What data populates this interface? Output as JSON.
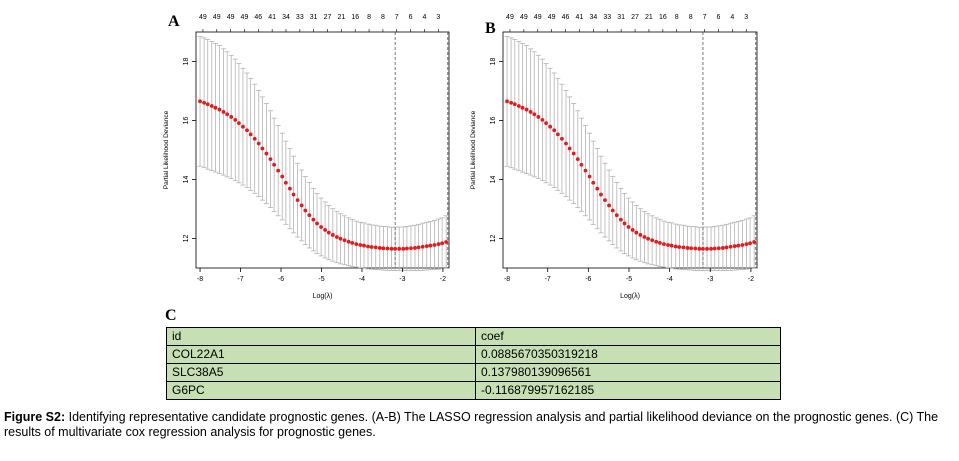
{
  "panels": {
    "A": "A",
    "B": "B",
    "C": "C"
  },
  "chart_data": [
    {
      "type": "scatter",
      "panel": "A",
      "title": "",
      "xlabel": "Log(λ)",
      "ylabel": "Partial Likelihood Deviance",
      "xlim": [
        -8.1,
        -1.85
      ],
      "ylim": [
        11.0,
        19.0
      ],
      "x_ticks": [
        "-8",
        "-7",
        "-6",
        "-5",
        "-4",
        "-3",
        "-2"
      ],
      "y_ticks": [
        "12",
        "14",
        "16",
        "18"
      ],
      "top_axis_labels": [
        "49",
        "49",
        "49",
        "49",
        "46",
        "41",
        "34",
        "33",
        "31",
        "27",
        "21",
        "16",
        "8",
        "8",
        "7",
        "6",
        "4",
        "3"
      ],
      "vlines": [
        -3.18,
        -1.88
      ],
      "point_color": "#e41a1c",
      "errorbar_color": "#b3b3b3",
      "points": [
        [
          -8.0,
          16.65
        ],
        [
          -7.9,
          16.6
        ],
        [
          -7.81,
          16.55
        ],
        [
          -7.71,
          16.49
        ],
        [
          -7.62,
          16.43
        ],
        [
          -7.52,
          16.37
        ],
        [
          -7.42,
          16.29
        ],
        [
          -7.33,
          16.21
        ],
        [
          -7.23,
          16.12
        ],
        [
          -7.13,
          16.02
        ],
        [
          -7.04,
          15.91
        ],
        [
          -6.94,
          15.79
        ],
        [
          -6.84,
          15.67
        ],
        [
          -6.75,
          15.53
        ],
        [
          -6.65,
          15.38
        ],
        [
          -6.55,
          15.22
        ],
        [
          -6.46,
          15.05
        ],
        [
          -6.36,
          14.88
        ],
        [
          -6.26,
          14.69
        ],
        [
          -6.17,
          14.5
        ],
        [
          -6.07,
          14.3
        ],
        [
          -5.97,
          14.1
        ],
        [
          -5.88,
          13.89
        ],
        [
          -5.78,
          13.69
        ],
        [
          -5.69,
          13.49
        ],
        [
          -5.59,
          13.3
        ],
        [
          -5.49,
          13.12
        ],
        [
          -5.4,
          12.95
        ],
        [
          -5.3,
          12.79
        ],
        [
          -5.2,
          12.64
        ],
        [
          -5.11,
          12.51
        ],
        [
          -5.01,
          12.39
        ],
        [
          -4.91,
          12.29
        ],
        [
          -4.82,
          12.2
        ],
        [
          -4.72,
          12.12
        ],
        [
          -4.62,
          12.05
        ],
        [
          -4.53,
          11.99
        ],
        [
          -4.43,
          11.94
        ],
        [
          -4.33,
          11.89
        ],
        [
          -4.24,
          11.85
        ],
        [
          -4.14,
          11.81
        ],
        [
          -4.04,
          11.78
        ],
        [
          -3.95,
          11.76
        ],
        [
          -3.85,
          11.73
        ],
        [
          -3.76,
          11.71
        ],
        [
          -3.66,
          11.7
        ],
        [
          -3.56,
          11.68
        ],
        [
          -3.47,
          11.67
        ],
        [
          -3.37,
          11.66
        ],
        [
          -3.27,
          11.65
        ],
        [
          -3.18,
          11.65
        ],
        [
          -3.08,
          11.65
        ],
        [
          -2.98,
          11.65
        ],
        [
          -2.89,
          11.66
        ],
        [
          -2.79,
          11.67
        ],
        [
          -2.69,
          11.68
        ],
        [
          -2.6,
          11.7
        ],
        [
          -2.5,
          11.72
        ],
        [
          -2.4,
          11.74
        ],
        [
          -2.31,
          11.76
        ],
        [
          -2.21,
          11.78
        ],
        [
          -2.11,
          11.81
        ],
        [
          -2.02,
          11.84
        ],
        [
          -1.92,
          11.88
        ]
      ],
      "lower": [
        14.45,
        14.4,
        14.35,
        14.3,
        14.25,
        14.2,
        14.15,
        14.09,
        14.03,
        13.96,
        13.89,
        13.81,
        13.73,
        13.63,
        13.53,
        13.42,
        13.3,
        13.18,
        13.05,
        12.92,
        12.77,
        12.63,
        12.48,
        12.33,
        12.19,
        12.05,
        11.92,
        11.8,
        11.68,
        11.58,
        11.49,
        11.41,
        11.34,
        11.28,
        11.23,
        11.18,
        11.14,
        11.11,
        11.08,
        11.05,
        11.03,
        11.01,
        10.99,
        10.97,
        10.96,
        10.95,
        10.94,
        10.93,
        10.92,
        10.92,
        10.91,
        10.91,
        10.91,
        10.91,
        10.91,
        10.91,
        10.92,
        10.92,
        10.93,
        10.94,
        10.95,
        10.96,
        10.98,
        10.99
      ],
      "upper": [
        18.85,
        18.8,
        18.75,
        18.68,
        18.61,
        18.54,
        18.43,
        18.33,
        18.21,
        18.08,
        17.93,
        17.77,
        17.61,
        17.43,
        17.23,
        17.02,
        16.8,
        16.58,
        16.33,
        16.08,
        15.83,
        15.57,
        15.3,
        15.05,
        14.79,
        14.55,
        14.32,
        14.1,
        13.9,
        13.7,
        13.53,
        13.37,
        13.24,
        13.12,
        13.01,
        12.92,
        12.84,
        12.77,
        12.7,
        12.65,
        12.59,
        12.55,
        12.53,
        12.49,
        12.46,
        12.45,
        12.42,
        12.41,
        12.4,
        12.38,
        12.39,
        12.39,
        12.39,
        12.41,
        12.43,
        12.45,
        12.48,
        12.52,
        12.55,
        12.58,
        12.61,
        12.66,
        12.7,
        12.77
      ]
    },
    {
      "type": "scatter",
      "panel": "B",
      "title": "",
      "xlabel": "Log(λ)",
      "ylabel": "Partial Likelihood Deviance",
      "xlim": [
        -8.1,
        -1.85
      ],
      "ylim": [
        11.0,
        19.0
      ],
      "x_ticks": [
        "-8",
        "-7",
        "-6",
        "-5",
        "-4",
        "-3",
        "-2"
      ],
      "y_ticks": [
        "12",
        "14",
        "16",
        "18"
      ],
      "top_axis_labels": [
        "49",
        "49",
        "49",
        "49",
        "46",
        "41",
        "34",
        "33",
        "31",
        "27",
        "21",
        "16",
        "8",
        "8",
        "7",
        "6",
        "4",
        "3"
      ],
      "vlines": [
        -3.18,
        -1.88
      ],
      "point_color": "#e41a1c",
      "errorbar_color": "#b3b3b3",
      "points": [
        [
          -8.0,
          16.65
        ],
        [
          -7.9,
          16.6
        ],
        [
          -7.81,
          16.55
        ],
        [
          -7.71,
          16.49
        ],
        [
          -7.62,
          16.43
        ],
        [
          -7.52,
          16.37
        ],
        [
          -7.42,
          16.29
        ],
        [
          -7.33,
          16.21
        ],
        [
          -7.23,
          16.12
        ],
        [
          -7.13,
          16.02
        ],
        [
          -7.04,
          15.91
        ],
        [
          -6.94,
          15.79
        ],
        [
          -6.84,
          15.67
        ],
        [
          -6.75,
          15.53
        ],
        [
          -6.65,
          15.38
        ],
        [
          -6.55,
          15.22
        ],
        [
          -6.46,
          15.05
        ],
        [
          -6.36,
          14.88
        ],
        [
          -6.26,
          14.69
        ],
        [
          -6.17,
          14.5
        ],
        [
          -6.07,
          14.3
        ],
        [
          -5.97,
          14.1
        ],
        [
          -5.88,
          13.89
        ],
        [
          -5.78,
          13.69
        ],
        [
          -5.69,
          13.49
        ],
        [
          -5.59,
          13.3
        ],
        [
          -5.49,
          13.12
        ],
        [
          -5.4,
          12.95
        ],
        [
          -5.3,
          12.79
        ],
        [
          -5.2,
          12.64
        ],
        [
          -5.11,
          12.51
        ],
        [
          -5.01,
          12.39
        ],
        [
          -4.91,
          12.29
        ],
        [
          -4.82,
          12.2
        ],
        [
          -4.72,
          12.12
        ],
        [
          -4.62,
          12.05
        ],
        [
          -4.53,
          11.99
        ],
        [
          -4.43,
          11.94
        ],
        [
          -4.33,
          11.89
        ],
        [
          -4.24,
          11.85
        ],
        [
          -4.14,
          11.81
        ],
        [
          -4.04,
          11.78
        ],
        [
          -3.95,
          11.76
        ],
        [
          -3.85,
          11.73
        ],
        [
          -3.76,
          11.71
        ],
        [
          -3.66,
          11.7
        ],
        [
          -3.56,
          11.68
        ],
        [
          -3.47,
          11.67
        ],
        [
          -3.37,
          11.66
        ],
        [
          -3.27,
          11.65
        ],
        [
          -3.18,
          11.65
        ],
        [
          -3.08,
          11.65
        ],
        [
          -2.98,
          11.65
        ],
        [
          -2.89,
          11.66
        ],
        [
          -2.79,
          11.67
        ],
        [
          -2.69,
          11.68
        ],
        [
          -2.6,
          11.7
        ],
        [
          -2.5,
          11.72
        ],
        [
          -2.4,
          11.74
        ],
        [
          -2.31,
          11.76
        ],
        [
          -2.21,
          11.78
        ],
        [
          -2.11,
          11.81
        ],
        [
          -2.02,
          11.84
        ],
        [
          -1.92,
          11.88
        ]
      ],
      "lower": [
        14.45,
        14.4,
        14.35,
        14.3,
        14.25,
        14.2,
        14.15,
        14.09,
        14.03,
        13.96,
        13.89,
        13.81,
        13.73,
        13.63,
        13.53,
        13.42,
        13.3,
        13.18,
        13.05,
        12.92,
        12.77,
        12.63,
        12.48,
        12.33,
        12.19,
        12.05,
        11.92,
        11.8,
        11.68,
        11.58,
        11.49,
        11.41,
        11.34,
        11.28,
        11.23,
        11.18,
        11.14,
        11.11,
        11.08,
        11.05,
        11.03,
        11.01,
        10.99,
        10.97,
        10.96,
        10.95,
        10.94,
        10.93,
        10.92,
        10.92,
        10.91,
        10.91,
        10.91,
        10.91,
        10.91,
        10.91,
        10.92,
        10.92,
        10.93,
        10.94,
        10.95,
        10.96,
        10.98,
        10.99
      ],
      "upper": [
        18.85,
        18.8,
        18.75,
        18.68,
        18.61,
        18.54,
        18.43,
        18.33,
        18.21,
        18.08,
        17.93,
        17.77,
        17.61,
        17.43,
        17.23,
        17.02,
        16.8,
        16.58,
        16.33,
        16.08,
        15.83,
        15.57,
        15.3,
        15.05,
        14.79,
        14.55,
        14.32,
        14.1,
        13.9,
        13.7,
        13.53,
        13.37,
        13.24,
        13.12,
        13.01,
        12.92,
        12.84,
        12.77,
        12.7,
        12.65,
        12.59,
        12.55,
        12.53,
        12.49,
        12.46,
        12.45,
        12.42,
        12.41,
        12.4,
        12.38,
        12.39,
        12.39,
        12.39,
        12.41,
        12.43,
        12.45,
        12.48,
        12.52,
        12.55,
        12.58,
        12.61,
        12.66,
        12.7,
        12.77
      ]
    },
    {
      "type": "table",
      "panel": "C",
      "columns": [
        "id",
        "coef"
      ],
      "rows": [
        [
          "COL22A1",
          "0.0885670350319218"
        ],
        [
          "SLC38A5",
          "0.137980139096561"
        ],
        [
          "G6PC",
          "-0.116879957162185"
        ]
      ],
      "background": "#c6e0b4"
    }
  ],
  "caption": {
    "label": "Figure S2:",
    "text": " Identifying representative candidate prognostic genes. (A-B) The LASSO regression analysis and partial likelihood deviance on the prognostic genes. (C) The results of multivariate cox regression analysis for prognostic genes."
  }
}
